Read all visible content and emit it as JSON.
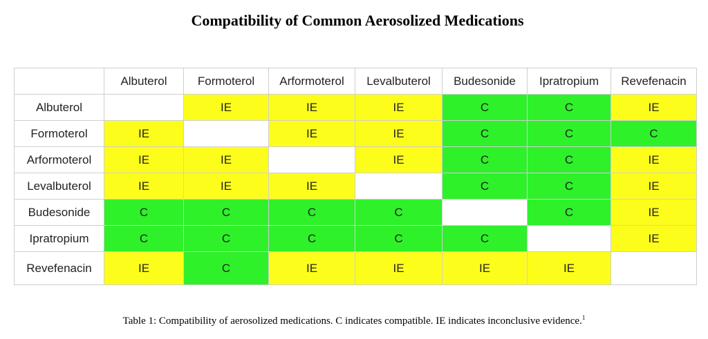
{
  "title": "Compatibility of Common Aerosolized Medications",
  "table": {
    "columns": [
      "Albuterol",
      "Formoterol",
      "Arformoterol",
      "Levalbuterol",
      "Budesonide",
      "Ipratropium",
      "Revefenacin"
    ],
    "rows": [
      {
        "label": "Albuterol",
        "cells": [
          "",
          "IE",
          "IE",
          "IE",
          "C",
          "C",
          "IE"
        ]
      },
      {
        "label": "Formoterol",
        "cells": [
          "IE",
          "",
          "IE",
          "IE",
          "C",
          "C",
          "C"
        ]
      },
      {
        "label": "Arformoterol",
        "cells": [
          "IE",
          "IE",
          "",
          "IE",
          "C",
          "C",
          "IE"
        ]
      },
      {
        "label": "Levalbuterol",
        "cells": [
          "IE",
          "IE",
          "IE",
          "",
          "C",
          "C",
          "IE"
        ]
      },
      {
        "label": "Budesonide",
        "cells": [
          "C",
          "C",
          "C",
          "C",
          "",
          "C",
          "IE"
        ]
      },
      {
        "label": "Ipratropium",
        "cells": [
          "C",
          "C",
          "C",
          "C",
          "C",
          "",
          "IE"
        ]
      },
      {
        "label": "Revefenacin",
        "cells": [
          "IE",
          "C",
          "IE",
          "IE",
          "IE",
          "IE",
          null
        ]
      }
    ],
    "legend_colors": {
      "C": "#2ef12a",
      "IE": "#fdfd1c"
    }
  },
  "caption": {
    "text": "Table 1: Compatibility of aerosolized medications. C indicates compatible. IE indicates inconclusive evidence.",
    "footnote": "1"
  }
}
